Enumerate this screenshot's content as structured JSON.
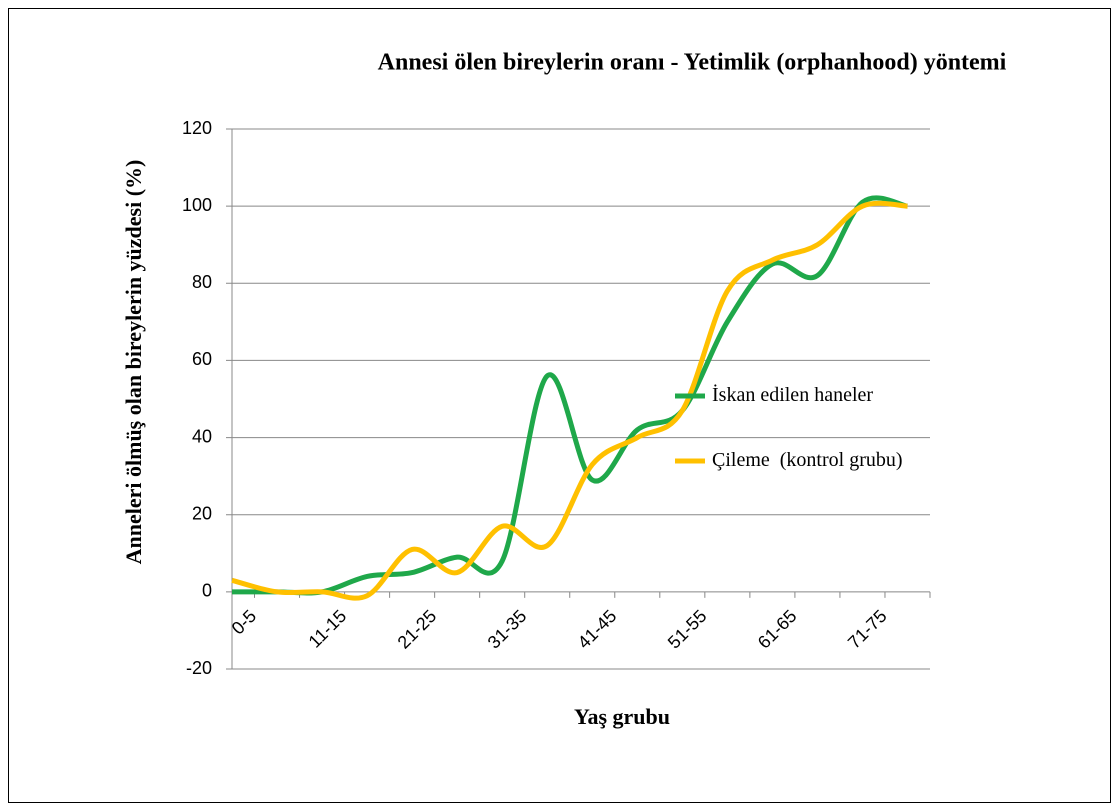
{
  "chart_data": {
    "type": "line",
    "title": "Annesi ölen bireylerin oranı - Yetimlik (orphanhood) yöntemi",
    "x_label": "Yaş grubu",
    "y_label": "Anneleri ölmüş olan bireylerin yüzdesi  (%)",
    "categories": [
      "0-5",
      null,
      "11-15",
      null,
      "21-25",
      null,
      "31-35",
      null,
      "41-45",
      null,
      "51-55",
      null,
      "61-65",
      null,
      "71-75",
      null
    ],
    "series": [
      {
        "name": "İskan edilen haneler",
        "color": "#1fa84a",
        "values": [
          0,
          0,
          0,
          4,
          5,
          9,
          8,
          56,
          29,
          42,
          47,
          70,
          85,
          82,
          101,
          100
        ]
      },
      {
        "name": "Çileme  (kontrol grubu)",
        "color": "#ffc000",
        "values": [
          3,
          0,
          0,
          -1,
          11,
          5,
          17,
          12,
          33,
          40,
          47,
          78,
          86,
          90,
          100,
          100
        ]
      }
    ],
    "ylim": [
      -20,
      120
    ],
    "yticks": [
      -20,
      0,
      20,
      40,
      60,
      80,
      100,
      120
    ],
    "grid": true,
    "smooth": true,
    "legend": "right"
  }
}
